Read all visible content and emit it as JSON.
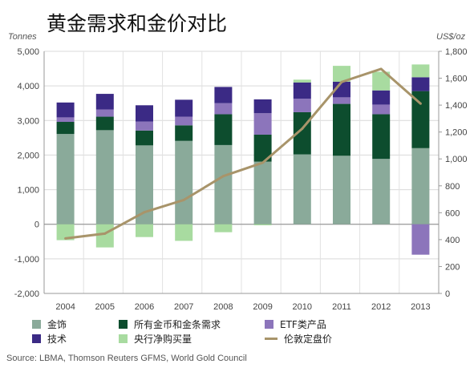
{
  "title": "黄金需求和金价对比",
  "chart_data": {
    "type": "bar",
    "title": "黄金需求和金价对比",
    "ylabel": "Tonnes",
    "y2label": "US$/oz",
    "ylim": [
      -2000,
      5000
    ],
    "y2lim": [
      0,
      1800
    ],
    "yticks": [
      "-2,000",
      "-1,000",
      "0",
      "1,000",
      "2,000",
      "3,000",
      "4,000",
      "5,000"
    ],
    "y2ticks": [
      "0",
      "200",
      "400",
      "600",
      "800",
      "1,000",
      "1,200",
      "1,400",
      "1,600",
      "1,800"
    ],
    "grid": true,
    "legend_position": "bottom",
    "categories": [
      "2004",
      "2005",
      "2006",
      "2007",
      "2008",
      "2009",
      "2010",
      "2011",
      "2012",
      "2013"
    ],
    "series": [
      {
        "name": "金饰",
        "color": "#8aaa9a",
        "values": [
          2610,
          2720,
          2280,
          2410,
          2290,
          1810,
          2020,
          1980,
          1890,
          2200
        ]
      },
      {
        "name": "所有金币和金条需求",
        "color": "#0d4d2e",
        "values": [
          350,
          390,
          430,
          450,
          890,
          780,
          1220,
          1500,
          1290,
          1650
        ]
      },
      {
        "name": "ETF类产品",
        "color": "#8c75bb",
        "values": [
          130,
          210,
          260,
          250,
          320,
          620,
          390,
          190,
          280,
          -880
        ]
      },
      {
        "name": "技术",
        "color": "#3b2a85",
        "values": [
          430,
          450,
          470,
          490,
          470,
          400,
          470,
          450,
          410,
          400
        ]
      },
      {
        "name": "央行净购买量",
        "color": "#a8dba0",
        "values": [
          -460,
          -670,
          -370,
          -480,
          -230,
          -30,
          80,
          460,
          540,
          370
        ]
      },
      {
        "name": "伦敦定盘价",
        "color": "#a8946a",
        "type": "line",
        "axis": "right",
        "values": [
          409,
          445,
          604,
          695,
          872,
          972,
          1225,
          1572,
          1669,
          1411
        ]
      }
    ]
  },
  "legend": [
    {
      "label": "金饰",
      "color": "#8aaa9a",
      "kind": "box"
    },
    {
      "label": "所有金币和金条需求",
      "color": "#0d4d2e",
      "kind": "box"
    },
    {
      "label": "ETF类产品",
      "color": "#8c75bb",
      "kind": "box"
    },
    {
      "label": "技术",
      "color": "#3b2a85",
      "kind": "box"
    },
    {
      "label": "央行净购买量",
      "color": "#a8dba0",
      "kind": "box"
    },
    {
      "label": "伦敦定盘价",
      "color": "#a8946a",
      "kind": "line"
    }
  ],
  "source": "Source: LBMA, Thomson Reuters GFMS, World Gold Council"
}
